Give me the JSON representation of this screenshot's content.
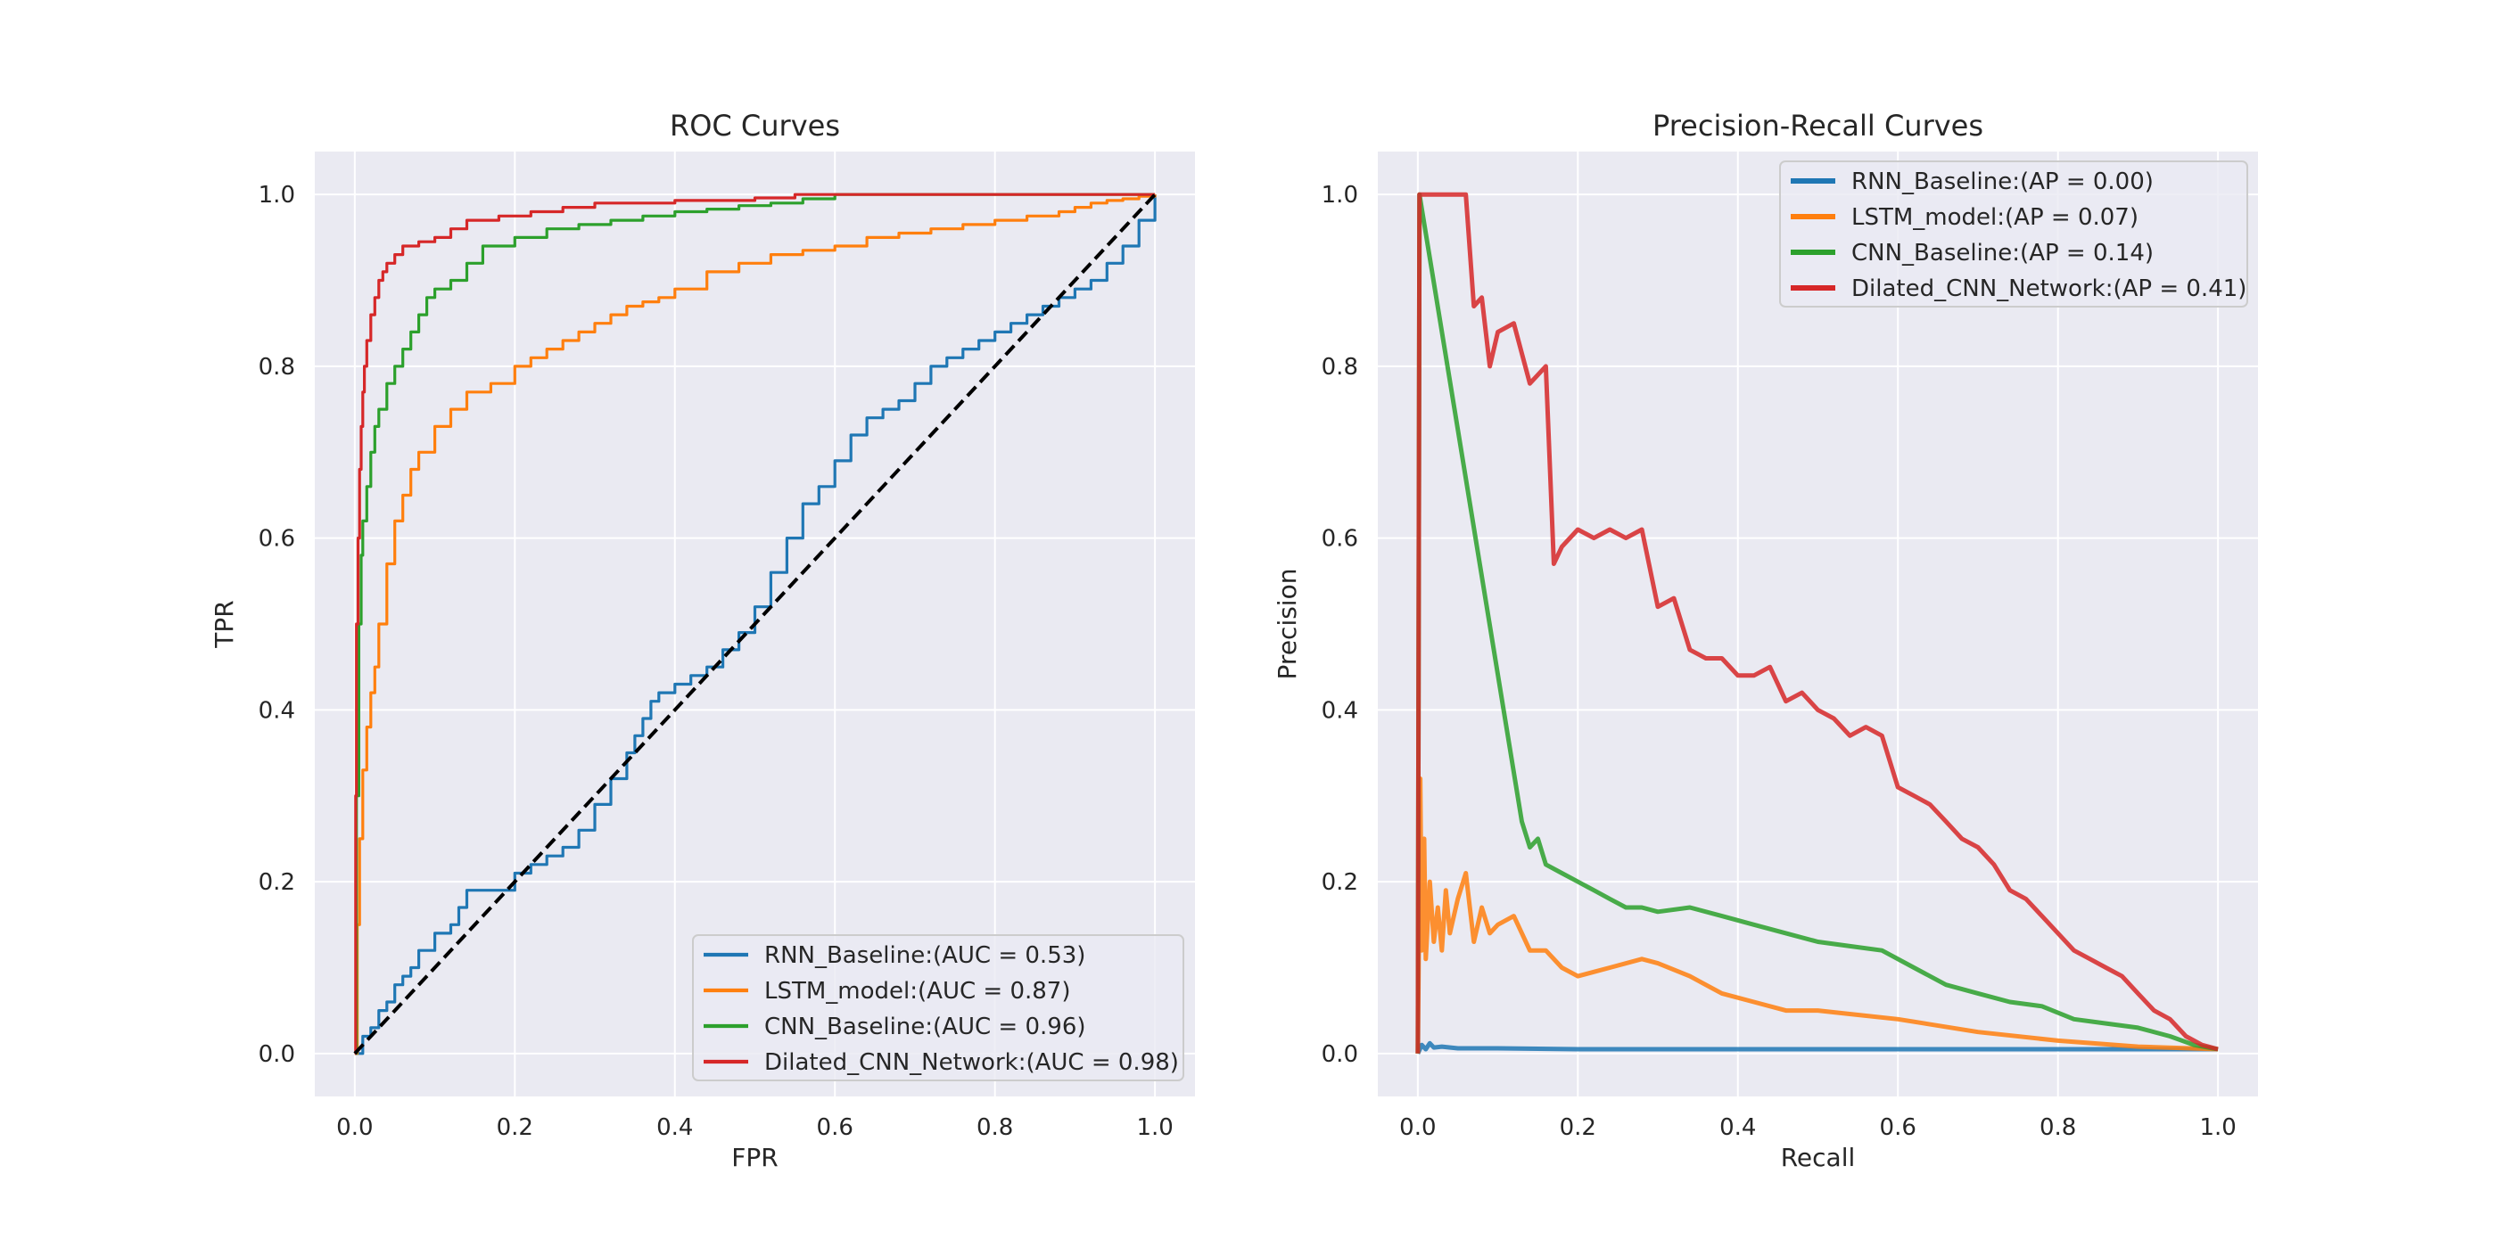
{
  "chart_data": [
    {
      "type": "line",
      "title": "ROC Curves",
      "xlabel": "FPR",
      "ylabel": "TPR",
      "xlim": [
        -0.05,
        1.05
      ],
      "ylim": [
        -0.05,
        1.05
      ],
      "xticks": [
        "0.0",
        "0.2",
        "0.4",
        "0.6",
        "0.8",
        "1.0"
      ],
      "yticks": [
        "0.0",
        "0.2",
        "0.4",
        "0.6",
        "0.8",
        "1.0"
      ],
      "grid": true,
      "legend_position": "lower-right",
      "chance_line": {
        "x": [
          0,
          1
        ],
        "y": [
          0,
          1
        ],
        "color": "#000000",
        "style": "dashed"
      },
      "series": [
        {
          "name": "RNN_Baseline:(AUC = 0.53)",
          "color": "#1f77b4",
          "x": [
            0,
            0.01,
            0.02,
            0.03,
            0.04,
            0.05,
            0.06,
            0.07,
            0.08,
            0.1,
            0.12,
            0.13,
            0.14,
            0.17,
            0.2,
            0.22,
            0.24,
            0.26,
            0.28,
            0.3,
            0.32,
            0.34,
            0.35,
            0.36,
            0.37,
            0.38,
            0.4,
            0.42,
            0.44,
            0.46,
            0.48,
            0.5,
            0.52,
            0.54,
            0.56,
            0.58,
            0.6,
            0.62,
            0.64,
            0.66,
            0.68,
            0.7,
            0.72,
            0.74,
            0.76,
            0.78,
            0.8,
            0.82,
            0.84,
            0.86,
            0.88,
            0.9,
            0.92,
            0.94,
            0.96,
            0.98,
            1.0
          ],
          "y": [
            0,
            0.02,
            0.03,
            0.05,
            0.06,
            0.08,
            0.09,
            0.1,
            0.12,
            0.14,
            0.15,
            0.17,
            0.19,
            0.19,
            0.21,
            0.22,
            0.23,
            0.24,
            0.26,
            0.29,
            0.32,
            0.35,
            0.37,
            0.39,
            0.41,
            0.42,
            0.43,
            0.44,
            0.45,
            0.47,
            0.49,
            0.52,
            0.56,
            0.6,
            0.64,
            0.66,
            0.69,
            0.72,
            0.74,
            0.75,
            0.76,
            0.78,
            0.8,
            0.81,
            0.82,
            0.83,
            0.84,
            0.85,
            0.86,
            0.87,
            0.88,
            0.89,
            0.9,
            0.92,
            0.94,
            0.97,
            1.0
          ]
        },
        {
          "name": "LSTM_model:(AUC = 0.87)",
          "color": "#ff7f0e",
          "x": [
            0,
            0.003,
            0.006,
            0.01,
            0.015,
            0.02,
            0.025,
            0.03,
            0.04,
            0.05,
            0.06,
            0.07,
            0.08,
            0.1,
            0.12,
            0.14,
            0.17,
            0.2,
            0.22,
            0.24,
            0.26,
            0.28,
            0.3,
            0.32,
            0.34,
            0.36,
            0.38,
            0.4,
            0.44,
            0.48,
            0.52,
            0.56,
            0.6,
            0.64,
            0.68,
            0.72,
            0.76,
            0.8,
            0.84,
            0.88,
            0.9,
            0.92,
            0.94,
            0.96,
            0.98,
            1.0
          ],
          "y": [
            0,
            0.15,
            0.25,
            0.33,
            0.38,
            0.42,
            0.45,
            0.5,
            0.57,
            0.62,
            0.65,
            0.68,
            0.7,
            0.73,
            0.75,
            0.77,
            0.78,
            0.8,
            0.81,
            0.82,
            0.83,
            0.84,
            0.85,
            0.86,
            0.87,
            0.875,
            0.88,
            0.89,
            0.91,
            0.92,
            0.93,
            0.935,
            0.94,
            0.95,
            0.955,
            0.96,
            0.965,
            0.97,
            0.975,
            0.98,
            0.985,
            0.99,
            0.993,
            0.995,
            0.998,
            1.0
          ]
        },
        {
          "name": "CNN_Baseline:(AUC = 0.96)",
          "color": "#2ca02c",
          "x": [
            0,
            0.002,
            0.005,
            0.008,
            0.01,
            0.015,
            0.02,
            0.025,
            0.03,
            0.04,
            0.05,
            0.06,
            0.07,
            0.08,
            0.09,
            0.1,
            0.12,
            0.14,
            0.16,
            0.2,
            0.24,
            0.28,
            0.32,
            0.36,
            0.4,
            0.44,
            0.48,
            0.52,
            0.56,
            0.6,
            0.7,
            0.8,
            0.9,
            1.0
          ],
          "y": [
            0,
            0.3,
            0.5,
            0.58,
            0.62,
            0.66,
            0.7,
            0.73,
            0.75,
            0.78,
            0.8,
            0.82,
            0.84,
            0.86,
            0.88,
            0.89,
            0.9,
            0.92,
            0.94,
            0.95,
            0.96,
            0.965,
            0.97,
            0.975,
            0.98,
            0.983,
            0.987,
            0.99,
            0.995,
            1.0,
            1.0,
            1.0,
            1.0,
            1.0
          ]
        },
        {
          "name": "Dilated_CNN_Network:(AUC = 0.98)",
          "color": "#d62728",
          "x": [
            0,
            0.001,
            0.002,
            0.004,
            0.006,
            0.008,
            0.01,
            0.012,
            0.015,
            0.02,
            0.025,
            0.03,
            0.035,
            0.04,
            0.05,
            0.06,
            0.08,
            0.1,
            0.12,
            0.14,
            0.18,
            0.22,
            0.26,
            0.3,
            0.4,
            0.5,
            0.55,
            0.6,
            0.7,
            0.8,
            0.9,
            1.0
          ],
          "y": [
            0,
            0.3,
            0.5,
            0.6,
            0.68,
            0.73,
            0.77,
            0.8,
            0.83,
            0.86,
            0.88,
            0.9,
            0.91,
            0.92,
            0.93,
            0.94,
            0.945,
            0.95,
            0.96,
            0.97,
            0.975,
            0.98,
            0.985,
            0.99,
            0.993,
            0.996,
            1.0,
            1.0,
            1.0,
            1.0,
            1.0,
            1.0
          ]
        }
      ]
    },
    {
      "type": "line",
      "title": "Precision-Recall Curves",
      "xlabel": "Recall",
      "ylabel": "Precision",
      "xlim": [
        -0.05,
        1.05
      ],
      "ylim": [
        -0.05,
        1.05
      ],
      "xticks": [
        "0.0",
        "0.2",
        "0.4",
        "0.6",
        "0.8",
        "1.0"
      ],
      "yticks": [
        "0.0",
        "0.2",
        "0.4",
        "0.6",
        "0.8",
        "1.0"
      ],
      "grid": true,
      "legend_position": "upper-right",
      "series": [
        {
          "name": "RNN_Baseline:(AP = 0.00)",
          "color": "#1f77b4",
          "x": [
            0,
            0.005,
            0.01,
            0.015,
            0.02,
            0.03,
            0.05,
            0.1,
            0.2,
            0.4,
            0.6,
            0.8,
            1.0
          ],
          "y": [
            0,
            0.01,
            0.005,
            0.012,
            0.007,
            0.008,
            0.006,
            0.006,
            0.005,
            0.005,
            0.005,
            0.005,
            0.005
          ]
        },
        {
          "name": "LSTM_model:(AP = 0.07)",
          "color": "#ff7f0e",
          "x": [
            0,
            0.003,
            0.005,
            0.008,
            0.01,
            0.015,
            0.02,
            0.025,
            0.03,
            0.035,
            0.04,
            0.05,
            0.06,
            0.07,
            0.08,
            0.09,
            0.1,
            0.12,
            0.14,
            0.16,
            0.18,
            0.2,
            0.24,
            0.28,
            0.3,
            0.34,
            0.38,
            0.42,
            0.46,
            0.5,
            0.55,
            0.6,
            0.7,
            0.8,
            0.9,
            1.0
          ],
          "y": [
            0,
            0.32,
            0.12,
            0.25,
            0.11,
            0.2,
            0.13,
            0.17,
            0.12,
            0.19,
            0.14,
            0.18,
            0.21,
            0.13,
            0.17,
            0.14,
            0.15,
            0.16,
            0.12,
            0.12,
            0.1,
            0.09,
            0.1,
            0.11,
            0.105,
            0.09,
            0.07,
            0.06,
            0.05,
            0.05,
            0.045,
            0.04,
            0.025,
            0.015,
            0.008,
            0.005
          ]
        },
        {
          "name": "CNN_Baseline:(AP = 0.14)",
          "color": "#2ca02c",
          "x": [
            0,
            0.002,
            0.13,
            0.14,
            0.15,
            0.16,
            0.18,
            0.2,
            0.22,
            0.24,
            0.26,
            0.28,
            0.3,
            0.34,
            0.38,
            0.42,
            0.46,
            0.5,
            0.54,
            0.58,
            0.62,
            0.66,
            0.7,
            0.74,
            0.78,
            0.82,
            0.86,
            0.9,
            0.94,
            0.97,
            1.0
          ],
          "y": [
            0,
            1.0,
            0.27,
            0.24,
            0.25,
            0.22,
            0.21,
            0.2,
            0.19,
            0.18,
            0.17,
            0.17,
            0.165,
            0.17,
            0.16,
            0.15,
            0.14,
            0.13,
            0.125,
            0.12,
            0.1,
            0.08,
            0.07,
            0.06,
            0.055,
            0.04,
            0.035,
            0.03,
            0.02,
            0.01,
            0.005
          ]
        },
        {
          "name": "Dilated_CNN_Network:(AP = 0.41)",
          "color": "#d62728",
          "x": [
            0,
            0.002,
            0.06,
            0.07,
            0.08,
            0.09,
            0.1,
            0.12,
            0.14,
            0.16,
            0.17,
            0.18,
            0.2,
            0.22,
            0.24,
            0.26,
            0.28,
            0.3,
            0.32,
            0.34,
            0.36,
            0.38,
            0.4,
            0.42,
            0.44,
            0.46,
            0.48,
            0.5,
            0.52,
            0.54,
            0.56,
            0.58,
            0.6,
            0.62,
            0.64,
            0.66,
            0.68,
            0.7,
            0.72,
            0.74,
            0.76,
            0.78,
            0.8,
            0.82,
            0.84,
            0.86,
            0.88,
            0.9,
            0.92,
            0.94,
            0.96,
            0.98,
            1.0
          ],
          "y": [
            0,
            1.0,
            1.0,
            0.87,
            0.88,
            0.8,
            0.84,
            0.85,
            0.78,
            0.8,
            0.57,
            0.59,
            0.61,
            0.6,
            0.61,
            0.6,
            0.61,
            0.52,
            0.53,
            0.47,
            0.46,
            0.46,
            0.44,
            0.44,
            0.45,
            0.41,
            0.42,
            0.4,
            0.39,
            0.37,
            0.38,
            0.37,
            0.31,
            0.3,
            0.29,
            0.27,
            0.25,
            0.24,
            0.22,
            0.19,
            0.18,
            0.16,
            0.14,
            0.12,
            0.11,
            0.1,
            0.09,
            0.07,
            0.05,
            0.04,
            0.02,
            0.01,
            0.005
          ]
        }
      ]
    }
  ]
}
